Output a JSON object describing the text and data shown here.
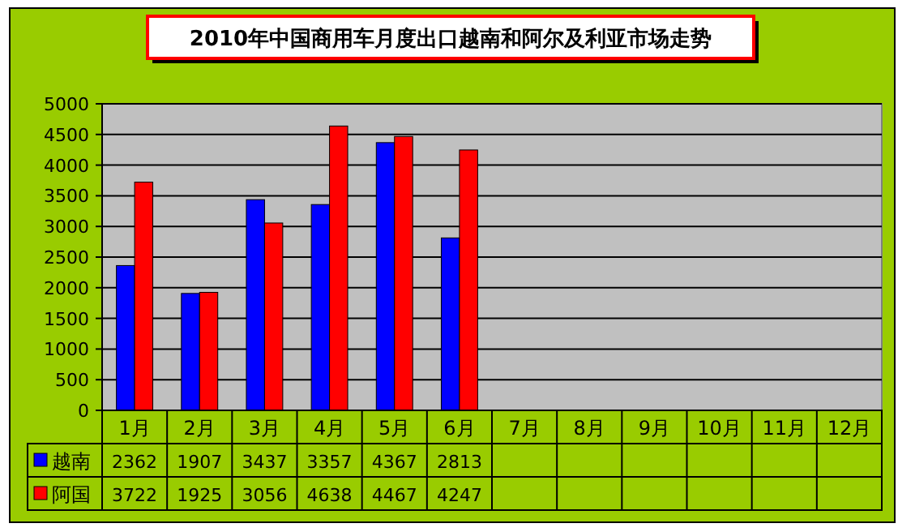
{
  "chart_data": {
    "type": "bar",
    "title": "2010年中国商用车月度出口越南和阿尔及利亚市场走势",
    "categories": [
      "1月",
      "2月",
      "3月",
      "4月",
      "5月",
      "6月",
      "7月",
      "8月",
      "9月",
      "10月",
      "11月",
      "12月"
    ],
    "series": [
      {
        "name": "越南",
        "color": "#0000ff",
        "values": [
          2362,
          1907,
          3437,
          3357,
          4367,
          2813,
          null,
          null,
          null,
          null,
          null,
          null
        ]
      },
      {
        "name": "阿国",
        "color": "#ff0000",
        "values": [
          3722,
          1925,
          3056,
          4638,
          4467,
          4247,
          null,
          null,
          null,
          null,
          null,
          null
        ]
      }
    ],
    "ylim": [
      0,
      5000
    ],
    "yticks": [
      0,
      500,
      1000,
      1500,
      2000,
      2500,
      3000,
      3500,
      4000,
      4500,
      5000
    ],
    "grid": "y",
    "legend": "bottom",
    "data_labels": true
  }
}
